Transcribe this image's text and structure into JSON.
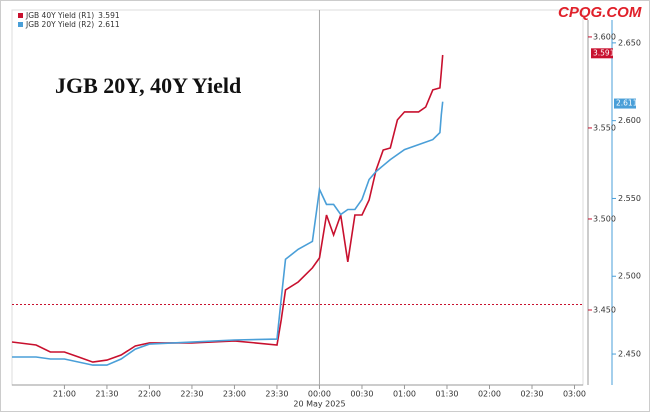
{
  "watermark": "CPQG.COM",
  "chart_data": {
    "type": "line",
    "title": "JGB 20Y, 40Y Yield",
    "x_sublabel": "20 May 2025",
    "xlim": [
      "20:23",
      "03:06"
    ],
    "xticks": [
      "21:00",
      "21:30",
      "22:00",
      "22:30",
      "23:00",
      "23:30",
      "00:00",
      "00:30",
      "01:00",
      "01:30",
      "02:00",
      "02:30",
      "03:00"
    ],
    "ylim": [
      3.4088,
      3.6093
    ],
    "yticks": [
      {
        "value": 3.45,
        "label": "3.450"
      },
      {
        "value": 3.5,
        "label": "3.500"
      },
      {
        "value": 3.55,
        "label": "3.550"
      },
      {
        "value": 3.6,
        "label": "3.600"
      }
    ],
    "y2lim": [
      2.4301,
      2.6647
    ],
    "y2ticks": [
      {
        "value": 2.45,
        "label": "2.450"
      },
      {
        "value": 2.5,
        "label": "2.500"
      },
      {
        "value": 2.55,
        "label": "2.550"
      },
      {
        "value": 2.6,
        "label": "2.600"
      },
      {
        "value": 2.65,
        "label": "2.650"
      }
    ],
    "vline": "00:00",
    "ref_line": 3.453,
    "series": [
      {
        "name": "JGB 40Y Yield (R1)",
        "color": "#c8102e",
        "last_value": 3.591,
        "x": [
          "20:23",
          "20:40",
          "20:50",
          "21:00",
          "21:10",
          "21:20",
          "21:30",
          "21:40",
          "21:50",
          "22:00",
          "22:30",
          "23:00",
          "23:30",
          "23:33",
          "23:36",
          "23:45",
          "23:55",
          "00:00",
          "00:05",
          "00:10",
          "00:15",
          "00:20",
          "00:25",
          "00:30",
          "00:35",
          "00:40",
          "00:45",
          "00:50",
          "00:55",
          "01:00",
          "01:10",
          "01:15",
          "01:20",
          "01:25",
          "01:26",
          "01:27"
        ],
        "values": [
          3.4324,
          3.4308,
          3.4269,
          3.4269,
          3.4242,
          3.4214,
          3.4225,
          3.4253,
          3.4302,
          3.4319,
          3.4319,
          3.433,
          3.4308,
          3.4445,
          3.461,
          3.4654,
          3.4731,
          3.4786,
          3.5022,
          3.4912,
          3.5022,
          3.4764,
          3.5022,
          3.5022,
          3.5104,
          3.5269,
          3.5379,
          3.539,
          3.5544,
          3.5588,
          3.5588,
          3.5615,
          3.5709,
          3.572,
          3.5808,
          3.5901
        ]
      },
      {
        "name": "JGB 20Y Yield (R2)",
        "color": "#4a9fd8",
        "axis": "y2",
        "last_value": 2.611,
        "x": [
          "20:23",
          "20:40",
          "20:50",
          "21:00",
          "21:20",
          "21:30",
          "21:40",
          "21:50",
          "22:00",
          "22:30",
          "23:00",
          "23:30",
          "23:33",
          "23:36",
          "23:45",
          "23:55",
          "00:00",
          "00:05",
          "00:10",
          "00:15",
          "00:20",
          "00:25",
          "00:30",
          "00:35",
          "00:40",
          "00:50",
          "01:00",
          "01:10",
          "01:20",
          "01:25",
          "01:26",
          "01:27"
        ],
        "values": [
          2.4481,
          2.4481,
          2.4468,
          2.4468,
          2.4429,
          2.4429,
          2.4468,
          2.4532,
          2.4564,
          2.4577,
          2.459,
          2.4596,
          2.4853,
          2.5109,
          2.5173,
          2.5224,
          2.5558,
          2.5462,
          2.5462,
          2.5397,
          2.5429,
          2.5429,
          2.5494,
          2.5622,
          2.5673,
          2.575,
          2.5814,
          2.5846,
          2.5878,
          2.5923,
          2.6038,
          2.6122
        ]
      }
    ]
  }
}
